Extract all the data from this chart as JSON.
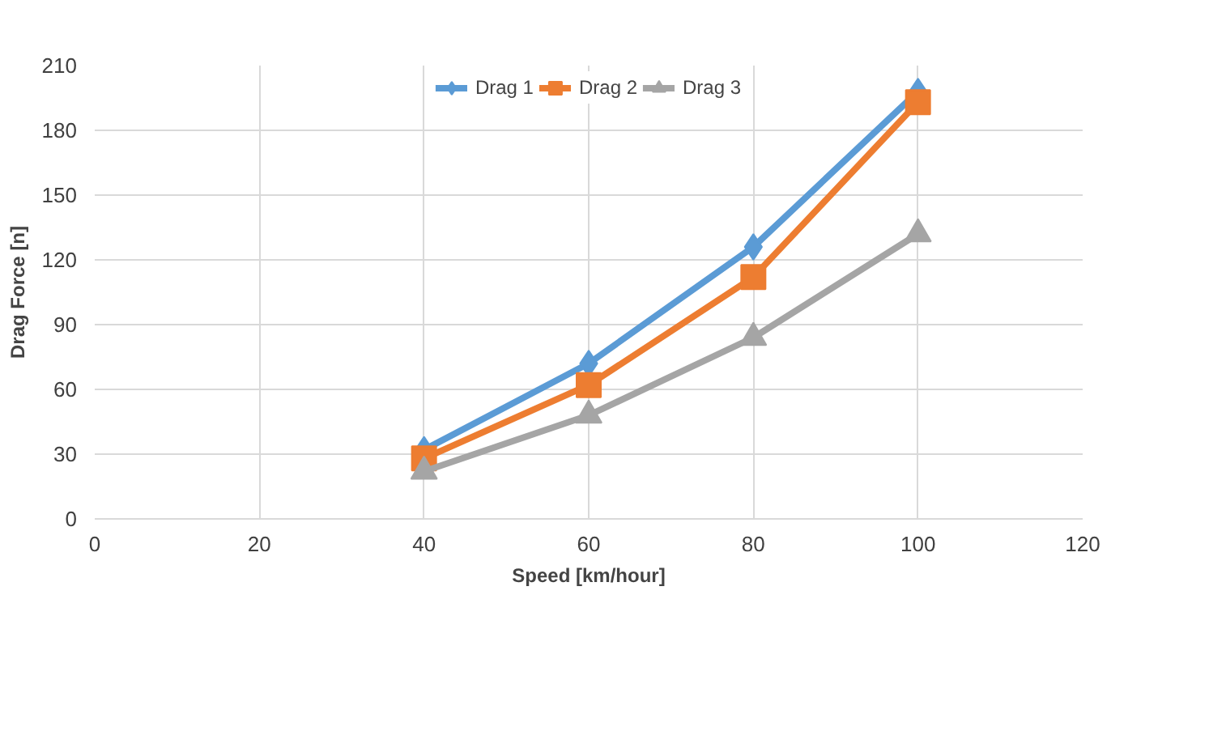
{
  "chart_data": {
    "type": "line",
    "xlabel": "Speed [km/hour]",
    "ylabel": "Drag Force [n]",
    "x": [
      40,
      60,
      80,
      100
    ],
    "series": [
      {
        "name": "Drag 1",
        "color": "#5b9bd5",
        "marker": "diamond",
        "values": [
          32,
          72,
          126,
          198
        ]
      },
      {
        "name": "Drag 2",
        "color": "#ed7d31",
        "marker": "square",
        "values": [
          28,
          62,
          112,
          193
        ]
      },
      {
        "name": "Drag 3",
        "color": "#a5a5a5",
        "marker": "triangle",
        "values": [
          22,
          48,
          84,
          132
        ]
      }
    ],
    "xlim": [
      0,
      120
    ],
    "xticks": [
      0,
      20,
      40,
      60,
      80,
      100,
      120
    ],
    "ylim": [
      0,
      210
    ],
    "yticks": [
      0,
      30,
      60,
      90,
      120,
      150,
      180,
      210
    ],
    "grid": true,
    "legend": "top",
    "line_style": "solid"
  }
}
